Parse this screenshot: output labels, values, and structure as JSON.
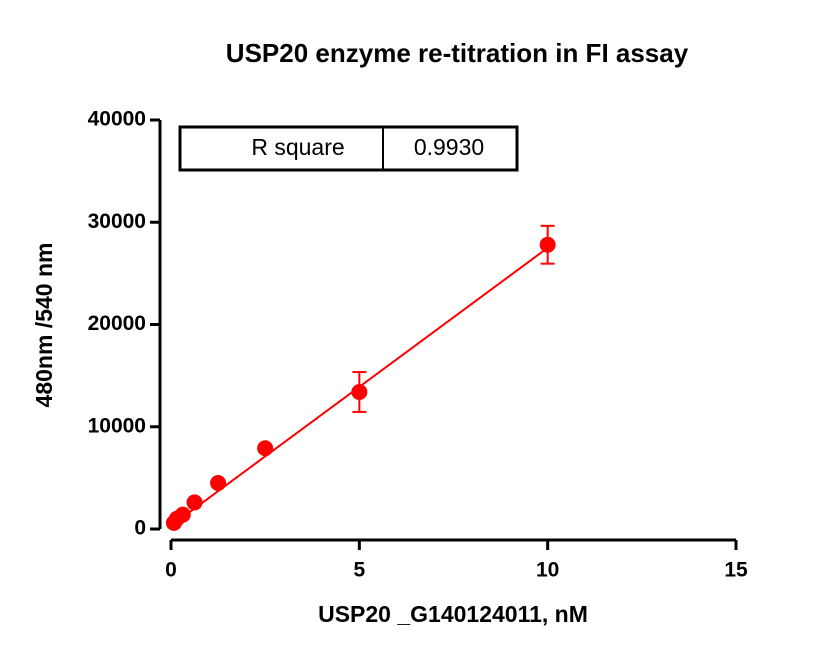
{
  "chart_data": {
    "type": "scatter",
    "title": "USP20 enzyme re-titration in FI assay",
    "x_label": "USP20 _G140124011, nM",
    "y_label": "480nm /540 nm",
    "x": [
      0.078,
      0.156,
      0.3125,
      0.625,
      1.25,
      2.5,
      5,
      10
    ],
    "values": [
      600,
      1000,
      1400,
      2600,
      4500,
      7900,
      13400,
      27800
    ],
    "errors": [
      null,
      null,
      null,
      null,
      null,
      null,
      1950,
      1850
    ],
    "color": "#ff0000",
    "fit": {
      "x": [
        0,
        10
      ],
      "y": [
        300,
        27500
      ]
    },
    "xlim": [
      0,
      15
    ],
    "xticks": [
      0,
      5,
      10,
      15
    ],
    "ylim": [
      0,
      40000
    ],
    "yticks": [
      0,
      10000,
      20000,
      30000,
      40000
    ],
    "stats_table": {
      "label": "R square",
      "value": "0.9930"
    }
  }
}
